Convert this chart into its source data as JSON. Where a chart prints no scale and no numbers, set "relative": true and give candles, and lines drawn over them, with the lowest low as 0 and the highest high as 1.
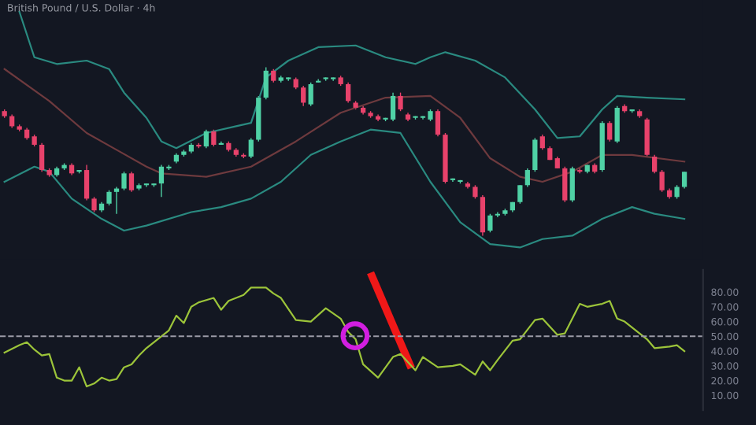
{
  "chart_data": [
    {
      "type": "candlestick",
      "title": "British Pound / U.S. Dollar · 4h",
      "relative": true,
      "tick_labels": false,
      "grid": false,
      "categories": [
        null,
        null,
        null,
        null,
        null,
        null,
        null,
        null,
        null,
        null,
        null,
        null,
        null,
        null,
        null,
        null,
        null,
        null,
        null,
        null,
        null,
        null,
        null,
        null,
        null,
        null,
        null,
        null,
        null,
        null,
        null,
        null,
        null,
        null,
        null,
        null,
        null,
        null,
        null,
        null,
        null,
        null,
        null,
        null,
        null,
        null,
        null,
        null,
        null,
        null,
        null,
        null,
        null,
        null,
        null,
        null,
        null,
        null,
        null,
        null,
        null,
        null,
        null,
        null,
        null,
        null,
        null,
        null,
        null,
        null,
        null,
        null,
        null,
        null,
        null,
        null,
        null,
        null,
        null,
        null,
        null,
        null,
        null,
        null,
        null,
        null,
        null,
        null,
        null,
        null,
        null,
        null
      ],
      "ohlc": [
        [
          0.74,
          0.75,
          0.7,
          0.71
        ],
        [
          0.71,
          0.72,
          0.64,
          0.65
        ],
        [
          0.65,
          0.66,
          0.62,
          0.63
        ],
        [
          0.63,
          0.64,
          0.57,
          0.58
        ],
        [
          0.59,
          0.6,
          0.53,
          0.54
        ],
        [
          0.54,
          0.55,
          0.38,
          0.39
        ],
        [
          0.39,
          0.4,
          0.35,
          0.36
        ],
        [
          0.36,
          0.41,
          0.35,
          0.4
        ],
        [
          0.4,
          0.43,
          0.39,
          0.42
        ],
        [
          0.42,
          0.43,
          0.36,
          0.37
        ],
        [
          0.38,
          0.39,
          0.37,
          0.38
        ],
        [
          0.39,
          0.42,
          0.21,
          0.22
        ],
        [
          0.22,
          0.23,
          0.14,
          0.15
        ],
        [
          0.15,
          0.2,
          0.14,
          0.19
        ],
        [
          0.19,
          0.27,
          0.18,
          0.26
        ],
        [
          0.26,
          0.29,
          0.13,
          0.28
        ],
        [
          0.28,
          0.38,
          0.27,
          0.37
        ],
        [
          0.37,
          0.38,
          0.26,
          0.27
        ],
        [
          0.28,
          0.31,
          0.27,
          0.3
        ],
        [
          0.3,
          0.31,
          0.29,
          0.3
        ],
        [
          0.3,
          0.31,
          0.29,
          0.31
        ],
        [
          0.31,
          0.42,
          0.23,
          0.41
        ],
        [
          0.4,
          0.42,
          0.39,
          0.41
        ],
        [
          0.44,
          0.49,
          0.43,
          0.48
        ],
        [
          0.48,
          0.51,
          0.47,
          0.5
        ],
        [
          0.5,
          0.55,
          0.49,
          0.54
        ],
        [
          0.54,
          0.55,
          0.52,
          0.53
        ],
        [
          0.53,
          0.63,
          0.52,
          0.62
        ],
        [
          0.62,
          0.63,
          0.53,
          0.54
        ],
        [
          0.54,
          0.56,
          0.54,
          0.55
        ],
        [
          0.55,
          0.56,
          0.5,
          0.51
        ],
        [
          0.51,
          0.52,
          0.47,
          0.48
        ],
        [
          0.48,
          0.49,
          0.46,
          0.47
        ],
        [
          0.47,
          0.58,
          0.46,
          0.57
        ],
        [
          0.57,
          0.83,
          0.56,
          0.82
        ],
        [
          0.82,
          1.0,
          0.81,
          0.98
        ],
        [
          0.98,
          0.99,
          0.91,
          0.92
        ],
        [
          0.92,
          0.95,
          0.91,
          0.94
        ],
        [
          0.93,
          0.94,
          0.92,
          0.93
        ],
        [
          0.93,
          0.94,
          0.87,
          0.88
        ],
        [
          0.88,
          0.89,
          0.77,
          0.79
        ],
        [
          0.78,
          0.91,
          0.77,
          0.9
        ],
        [
          0.91,
          0.93,
          0.91,
          0.92
        ],
        [
          0.93,
          0.94,
          0.92,
          0.93
        ],
        [
          0.93,
          0.94,
          0.92,
          0.93
        ],
        [
          0.94,
          0.95,
          0.89,
          0.9
        ],
        [
          0.9,
          0.91,
          0.79,
          0.8
        ],
        [
          0.79,
          0.8,
          0.75,
          0.76
        ],
        [
          0.76,
          0.77,
          0.72,
          0.73
        ],
        [
          0.73,
          0.74,
          0.7,
          0.71
        ],
        [
          0.71,
          0.72,
          0.68,
          0.69
        ],
        [
          0.69,
          0.7,
          0.68,
          0.69
        ],
        [
          0.69,
          0.85,
          0.68,
          0.83
        ],
        [
          0.83,
          0.85,
          0.74,
          0.75
        ],
        [
          0.72,
          0.73,
          0.68,
          0.69
        ],
        [
          0.7,
          0.71,
          0.69,
          0.7
        ],
        [
          0.7,
          0.71,
          0.69,
          0.7
        ],
        [
          0.69,
          0.75,
          0.68,
          0.74
        ],
        [
          0.74,
          0.75,
          0.59,
          0.6
        ],
        [
          0.6,
          0.61,
          0.31,
          0.32
        ],
        [
          0.33,
          0.34,
          0.32,
          0.33
        ],
        [
          0.32,
          0.33,
          0.31,
          0.32
        ],
        [
          0.31,
          0.32,
          0.28,
          0.29
        ],
        [
          0.29,
          0.3,
          0.22,
          0.23
        ],
        [
          0.23,
          0.24,
          0.0,
          0.02
        ],
        [
          0.03,
          0.13,
          0.02,
          0.12
        ],
        [
          0.12,
          0.14,
          0.11,
          0.13
        ],
        [
          0.13,
          0.16,
          0.12,
          0.15
        ],
        [
          0.15,
          0.2,
          0.14,
          0.2
        ],
        [
          0.2,
          0.3,
          0.19,
          0.3
        ],
        [
          0.3,
          0.4,
          0.29,
          0.39
        ],
        [
          0.39,
          0.58,
          0.38,
          0.57
        ],
        [
          0.59,
          0.6,
          0.51,
          0.52
        ],
        [
          0.52,
          0.53,
          0.45,
          0.45
        ],
        [
          0.46,
          0.47,
          0.4,
          0.4
        ],
        [
          0.4,
          0.41,
          0.2,
          0.21
        ],
        [
          0.21,
          0.41,
          0.2,
          0.4
        ],
        [
          0.39,
          0.4,
          0.37,
          0.38
        ],
        [
          0.38,
          0.42,
          0.37,
          0.42
        ],
        [
          0.42,
          0.43,
          0.37,
          0.38
        ],
        [
          0.39,
          0.68,
          0.38,
          0.67
        ],
        [
          0.67,
          0.68,
          0.56,
          0.57
        ],
        [
          0.56,
          0.77,
          0.55,
          0.76
        ],
        [
          0.77,
          0.78,
          0.73,
          0.74
        ],
        [
          0.74,
          0.75,
          0.73,
          0.74
        ],
        [
          0.74,
          0.75,
          0.7,
          0.71
        ],
        [
          0.69,
          0.7,
          0.47,
          0.48
        ],
        [
          0.47,
          0.48,
          0.37,
          0.38
        ],
        [
          0.38,
          0.39,
          0.26,
          0.27
        ],
        [
          0.27,
          0.28,
          0.22,
          0.23
        ],
        [
          0.23,
          0.3,
          0.22,
          0.29
        ],
        [
          0.29,
          0.38,
          0.28,
          0.38
        ]
      ],
      "colors": [
        "#e8426b",
        "#e8426b",
        "#e8426b",
        "#e8426b",
        "#e8426b",
        "#e8426b",
        "#e8426b",
        "#4fd1a5",
        "#4fd1a5",
        "#e8426b",
        "#4fd1a5",
        "#e8426b",
        "#e8426b",
        "#4fd1a5",
        "#4fd1a5",
        "#4fd1a5",
        "#4fd1a5",
        "#e8426b",
        "#4fd1a5",
        "#4fd1a5",
        "#4fd1a5",
        "#4fd1a5",
        "#4fd1a5",
        "#4fd1a5",
        "#4fd1a5",
        "#4fd1a5",
        "#e8426b",
        "#4fd1a5",
        "#e8426b",
        "#4fd1a5",
        "#e8426b",
        "#e8426b",
        "#e8426b",
        "#4fd1a5",
        "#4fd1a5",
        "#4fd1a5",
        "#e8426b",
        "#4fd1a5",
        "#4fd1a5",
        "#e8426b",
        "#e8426b",
        "#4fd1a5",
        "#4fd1a5",
        "#4fd1a5",
        "#4fd1a5",
        "#e8426b",
        "#e8426b",
        "#e8426b",
        "#e8426b",
        "#e8426b",
        "#e8426b",
        "#4fd1a5",
        "#4fd1a5",
        "#e8426b",
        "#e8426b",
        "#4fd1a5",
        "#4fd1a5",
        "#4fd1a5",
        "#e8426b",
        "#e8426b",
        "#4fd1a5",
        "#4fd1a5",
        "#e8426b",
        "#e8426b",
        "#e8426b",
        "#4fd1a5",
        "#4fd1a5",
        "#4fd1a5",
        "#4fd1a5",
        "#4fd1a5",
        "#4fd1a5",
        "#4fd1a5",
        "#e8426b",
        "#e8426b",
        "#e8426b",
        "#e8426b",
        "#4fd1a5",
        "#e8426b",
        "#4fd1a5",
        "#e8426b",
        "#4fd1a5",
        "#e8426b",
        "#4fd1a5",
        "#e8426b",
        "#4fd1a5",
        "#e8426b",
        "#e8426b",
        "#e8426b",
        "#e8426b",
        "#e8426b",
        "#4fd1a5",
        "#4fd1a5"
      ],
      "series": [
        {
          "type": "line",
          "color": "#2a8a80",
          "values": [
            null,
            null,
            1.33,
            null,
            1.06,
            null,
            null,
            1.02,
            null,
            null,
            null,
            1.04,
            null,
            null,
            0.99,
            null,
            0.85,
            null,
            null,
            0.7,
            null,
            0.56,
            null,
            0.52,
            null,
            null,
            null,
            0.61,
            null,
            null,
            null,
            0.65,
            null,
            0.67,
            null,
            0.94,
            null,
            null,
            1.04,
            null,
            null,
            null,
            1.12,
            null,
            null,
            null,
            null,
            1.13,
            null,
            null,
            null,
            1.06,
            null,
            null,
            null,
            1.02,
            null,
            1.06,
            null,
            1.09,
            null,
            null,
            null,
            1.04,
            null,
            null,
            null,
            0.94,
            null,
            null,
            null,
            0.75,
            null,
            null,
            0.58,
            null,
            null,
            0.59,
            null,
            null,
            0.75,
            null,
            0.83,
            null,
            null,
            null,
            0.82,
            null,
            null,
            null,
            null,
            0.81
          ]
        },
        {
          "type": "line",
          "color": "#6e3a3e",
          "values": [
            0.99,
            null,
            null,
            null,
            null,
            null,
            0.8,
            null,
            null,
            null,
            null,
            0.61,
            null,
            null,
            null,
            0.51,
            null,
            null,
            null,
            0.41,
            null,
            0.37,
            null,
            null,
            null,
            null,
            null,
            0.35,
            null,
            null,
            null,
            null,
            null,
            0.41,
            null,
            null,
            null,
            null,
            null,
            0.56,
            null,
            null,
            null,
            null,
            null,
            0.73,
            null,
            null,
            null,
            null,
            null,
            0.82,
            null,
            null,
            null,
            null,
            null,
            0.83,
            null,
            null,
            null,
            0.7,
            null,
            null,
            null,
            0.46,
            null,
            null,
            null,
            0.35,
            null,
            null,
            0.32,
            null,
            null,
            null,
            0.38,
            null,
            null,
            null,
            0.48,
            null,
            null,
            null,
            0.48,
            null,
            null,
            null,
            null,
            null,
            null,
            0.44
          ]
        },
        {
          "type": "line",
          "color": "#2a8a80",
          "values": [
            0.32,
            null,
            null,
            null,
            0.41,
            null,
            0.38,
            null,
            null,
            0.22,
            null,
            null,
            null,
            0.1,
            null,
            null,
            0.03,
            null,
            null,
            0.06,
            null,
            null,
            null,
            null,
            null,
            0.14,
            null,
            null,
            null,
            0.17,
            null,
            null,
            null,
            0.22,
            null,
            null,
            null,
            0.32,
            null,
            null,
            null,
            0.48,
            null,
            null,
            null,
            0.56,
            null,
            null,
            null,
            0.63,
            null,
            null,
            null,
            0.61,
            null,
            null,
            null,
            0.32,
            null,
            null,
            null,
            0.08,
            null,
            null,
            null,
            -0.05,
            null,
            null,
            null,
            -0.07,
            null,
            null,
            -0.02,
            null,
            null,
            null,
            0,
            null,
            null,
            null,
            0.1,
            null,
            null,
            null,
            0.17,
            null,
            null,
            0.13,
            null,
            null,
            null,
            0.1
          ]
        }
      ]
    },
    {
      "type": "line",
      "tick_labels": "y",
      "grid": false,
      "ylim": [
        0,
        95
      ],
      "categories": [
        null,
        null,
        null,
        null,
        null,
        null,
        null,
        null,
        null,
        null,
        null,
        null,
        null,
        null,
        null,
        null,
        null,
        null,
        null,
        null,
        null,
        null,
        null,
        null,
        null,
        null,
        null,
        null,
        null,
        null,
        null,
        null,
        null,
        null,
        null,
        null,
        null,
        null,
        null,
        null,
        null,
        null,
        null,
        null,
        null,
        null,
        null,
        null,
        null,
        null,
        null,
        null,
        null,
        null,
        null,
        null,
        null,
        null,
        null,
        null,
        null,
        null,
        null,
        null,
        null,
        null,
        null,
        null,
        null,
        null,
        null,
        null,
        null,
        null,
        null,
        null,
        null,
        null,
        null,
        null,
        null,
        null,
        null,
        null,
        null,
        null,
        null,
        null,
        null,
        null,
        null,
        null
      ],
      "yticks": [
        {
          "value": 10,
          "label": "10.00"
        },
        {
          "value": 20,
          "label": "20.00"
        },
        {
          "value": 30,
          "label": "30.00"
        },
        {
          "value": 40,
          "label": "40.00"
        },
        {
          "value": 50,
          "label": "50.00"
        },
        {
          "value": 60,
          "label": "60.00"
        },
        {
          "value": 70,
          "label": "70.00"
        },
        {
          "value": 80,
          "label": "80.00"
        }
      ],
      "ref_lines": [
        {
          "axis": "y",
          "value": 50,
          "color": "#9a9aa6",
          "line_style": "dashed"
        }
      ],
      "series": [
        {
          "color": "#9cc43a",
          "values": [
            39,
            null,
            44,
            46,
            41,
            37,
            38,
            22,
            20,
            20,
            29,
            16,
            18,
            22,
            20,
            21,
            29,
            31,
            37,
            42,
            46,
            null,
            54,
            64,
            59,
            70,
            73,
            null,
            76,
            68,
            74,
            null,
            78,
            83,
            null,
            83,
            79,
            76,
            null,
            61,
            null,
            60,
            null,
            69,
            null,
            62,
            53,
            48,
            31,
            null,
            22,
            null,
            36,
            38,
            null,
            27,
            36,
            null,
            29,
            null,
            30,
            31,
            null,
            24,
            33,
            27,
            34,
            null,
            47,
            48,
            null,
            61,
            62,
            null,
            51,
            52,
            null,
            72,
            70,
            null,
            72,
            74,
            62,
            60,
            null,
            52,
            48,
            42,
            null,
            43,
            44,
            40
          ]
        }
      ]
    }
  ]
}
